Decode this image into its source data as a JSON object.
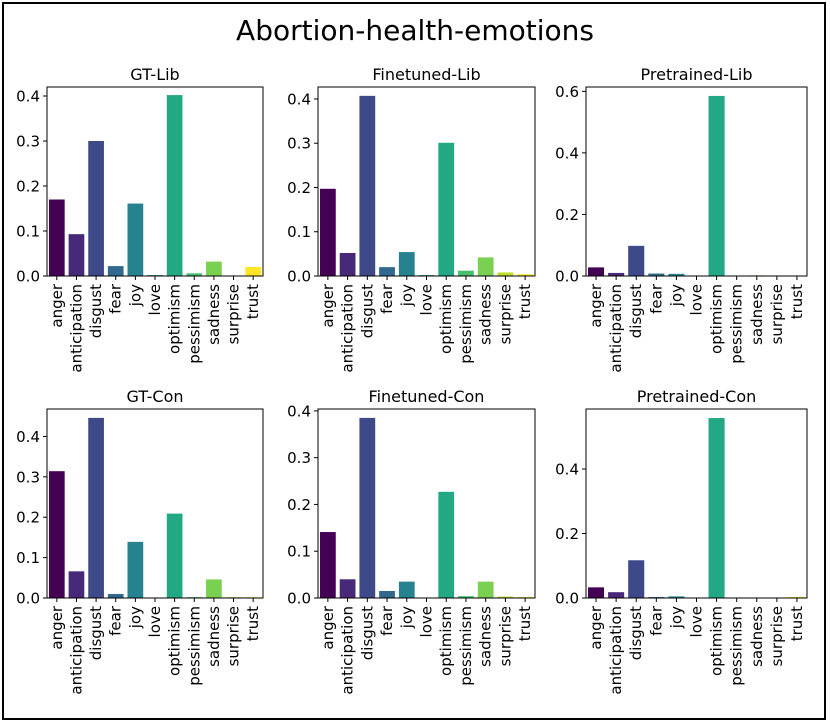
{
  "figure_title": "Abortion-health-emotions",
  "chart_data": [
    {
      "type": "bar",
      "title": "GT-Lib",
      "categories": [
        "anger",
        "anticipation",
        "disgust",
        "fear",
        "joy",
        "love",
        "optimism",
        "pessimism",
        "sadness",
        "surprise",
        "trust"
      ],
      "values": [
        0.17,
        0.093,
        0.3,
        0.022,
        0.161,
        0.002,
        0.402,
        0.006,
        0.032,
        0.0,
        0.02
      ],
      "ylim": [
        0,
        0.42
      ],
      "yticks": [
        0.0,
        0.1,
        0.2,
        0.3,
        0.4
      ],
      "xlabel": "",
      "ylabel": ""
    },
    {
      "type": "bar",
      "title": "Finetuned-Lib",
      "categories": [
        "anger",
        "anticipation",
        "disgust",
        "fear",
        "joy",
        "love",
        "optimism",
        "pessimism",
        "sadness",
        "surprise",
        "trust"
      ],
      "values": [
        0.197,
        0.052,
        0.407,
        0.02,
        0.054,
        0.002,
        0.301,
        0.012,
        0.042,
        0.008,
        0.004
      ],
      "ylim": [
        0,
        0.427
      ],
      "yticks": [
        0.0,
        0.1,
        0.2,
        0.3,
        0.4
      ],
      "xlabel": "",
      "ylabel": ""
    },
    {
      "type": "bar",
      "title": "Pretrained-Lib",
      "categories": [
        "anger",
        "anticipation",
        "disgust",
        "fear",
        "joy",
        "love",
        "optimism",
        "pessimism",
        "sadness",
        "surprise",
        "trust"
      ],
      "values": [
        0.028,
        0.01,
        0.098,
        0.008,
        0.007,
        0.0,
        0.585,
        0.0,
        0.002,
        0.0,
        0.0
      ],
      "ylim": [
        0,
        0.614
      ],
      "yticks": [
        0.0,
        0.2,
        0.4,
        0.6
      ],
      "xlabel": "",
      "ylabel": ""
    },
    {
      "type": "bar",
      "title": "GT-Con",
      "categories": [
        "anger",
        "anticipation",
        "disgust",
        "fear",
        "joy",
        "love",
        "optimism",
        "pessimism",
        "sadness",
        "surprise",
        "trust"
      ],
      "values": [
        0.314,
        0.066,
        0.446,
        0.01,
        0.139,
        0.0,
        0.209,
        0.002,
        0.046,
        0.002,
        0.002
      ],
      "ylim": [
        0,
        0.468
      ],
      "yticks": [
        0.0,
        0.1,
        0.2,
        0.3,
        0.4
      ],
      "xlabel": "",
      "ylabel": ""
    },
    {
      "type": "bar",
      "title": "Finetuned-Con",
      "categories": [
        "anger",
        "anticipation",
        "disgust",
        "fear",
        "joy",
        "love",
        "optimism",
        "pessimism",
        "sadness",
        "surprise",
        "trust"
      ],
      "values": [
        0.141,
        0.04,
        0.385,
        0.015,
        0.035,
        0.0,
        0.227,
        0.004,
        0.035,
        0.003,
        0.002
      ],
      "ylim": [
        0,
        0.404
      ],
      "yticks": [
        0.0,
        0.1,
        0.2,
        0.3,
        0.4
      ],
      "xlabel": "",
      "ylabel": ""
    },
    {
      "type": "bar",
      "title": "Pretrained-Con",
      "categories": [
        "anger",
        "anticipation",
        "disgust",
        "fear",
        "joy",
        "love",
        "optimism",
        "pessimism",
        "sadness",
        "surprise",
        "trust"
      ],
      "values": [
        0.033,
        0.018,
        0.117,
        0.003,
        0.005,
        0.0,
        0.558,
        0.0,
        0.0,
        0.0,
        0.003
      ],
      "ylim": [
        0,
        0.586
      ],
      "yticks": [
        0.0,
        0.2,
        0.4
      ],
      "xlabel": "",
      "ylabel": ""
    }
  ],
  "colors": [
    "#440154",
    "#482878",
    "#3e4989",
    "#31688e",
    "#26828e",
    "#1f9e89",
    "#35b779",
    "#6ece58",
    "#b5de2b",
    "#fde725",
    "#fde725"
  ],
  "bar_colors": [
    "#440154",
    "#482878",
    "#3e4989",
    "#31688e",
    "#26828e",
    "#1f9e89",
    "#22a884",
    "#44bf70",
    "#7ad151",
    "#bddf26",
    "#fde725"
  ]
}
